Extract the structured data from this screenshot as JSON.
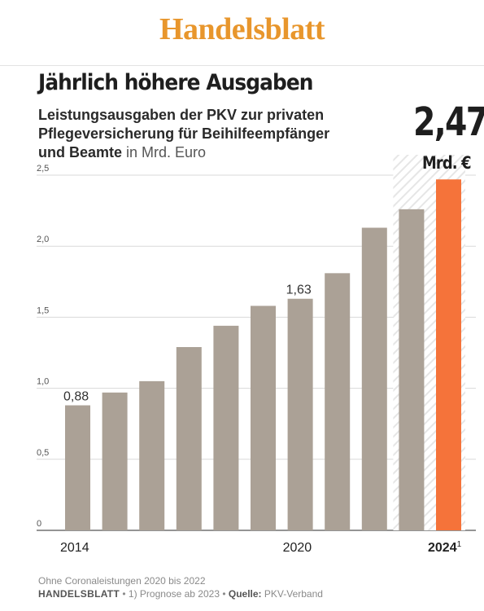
{
  "brand": "Handelsblatt",
  "headline": "Jährlich höhere Ausgaben",
  "subtitle": {
    "line1": "Leistungsausgaben der PKV zur privaten",
    "line2": "Pflegeversicherung für Beihilfeempfänger",
    "line3_bold": "und Beamte",
    "line3_unit": " in Mrd. Euro"
  },
  "highlight": {
    "value": "2,47",
    "unit": "Mrd. €"
  },
  "footer": {
    "note": "Ohne Coronaleistungen 2020 bis 2022",
    "brand": "HANDELSBLATT",
    "sep1": " • 1) Prognose ab 2023 • ",
    "source_label": "Quelle:",
    "source": " PKV-Verband"
  },
  "colors": {
    "bar": "#aba196",
    "highlight_bar": "#f5733a",
    "brand": "#e8962c",
    "hatch": "#e6e6e6"
  },
  "chart_data": {
    "type": "bar",
    "categories": [
      "2014",
      "2015",
      "2016",
      "2017",
      "2018",
      "2019",
      "2020",
      "2021",
      "2022",
      "2023",
      "2024"
    ],
    "values": [
      0.88,
      0.97,
      1.05,
      1.29,
      1.44,
      1.58,
      1.63,
      1.81,
      2.13,
      2.26,
      2.47
    ],
    "x_tick_labels": [
      {
        "index": 0,
        "text": "2014",
        "sup": ""
      },
      {
        "index": 6,
        "text": "2020",
        "sup": ""
      },
      {
        "index": 10,
        "text": "2024",
        "sup": "1"
      }
    ],
    "data_labels": [
      {
        "index": 0,
        "text": "0,88"
      },
      {
        "index": 6,
        "text": "1,63"
      }
    ],
    "y_ticks": [
      {
        "value": 0,
        "label": "0"
      },
      {
        "value": 0.5,
        "label": "0,5"
      },
      {
        "value": 1.0,
        "label": "1,0"
      },
      {
        "value": 1.5,
        "label": "1,5"
      },
      {
        "value": 2.0,
        "label": "2,0"
      },
      {
        "value": 2.5,
        "label": "2,5"
      }
    ],
    "ylim": [
      0,
      2.5
    ],
    "forecast_from_index": 9,
    "highlight_index": 10,
    "grid": true
  }
}
